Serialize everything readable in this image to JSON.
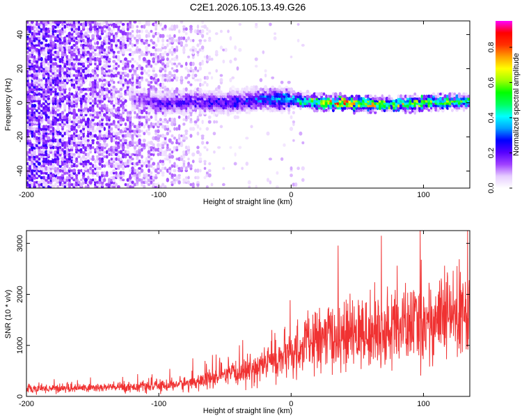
{
  "title": "C2E1.2026.105.13.49.G26",
  "chart_data": [
    {
      "type": "heatmap",
      "name": "spectrogram",
      "xlabel": "Height of straight line (km)",
      "ylabel": "Frequency (Hz)",
      "xlim": [
        -200,
        135
      ],
      "ylim": [
        -50,
        48
      ],
      "xticks": [
        -200,
        -100,
        0,
        100
      ],
      "yticks": [
        -40,
        -20,
        0,
        20,
        40
      ],
      "colorbar": {
        "label": "Normalized spectral amplitude",
        "range": [
          0,
          0.95
        ],
        "ticks": [
          0.0,
          0.2,
          0.4,
          0.6,
          0.8
        ],
        "tick_labels": [
          "0.0",
          "0.2",
          "0.4",
          "0.6",
          "0.8"
        ],
        "colormap": [
          "#ffffff",
          "#e6ccff",
          "#9f40ff",
          "#5500ff",
          "#0000ff",
          "#00a0ff",
          "#00ffff",
          "#00ff60",
          "#00ff00",
          "#a0ff00",
          "#ffff00",
          "#ffa000",
          "#ff3000",
          "#ff0000",
          "#ff00ff"
        ]
      },
      "signal": {
        "description_points": [
          {
            "x": -115,
            "f_center": 2,
            "amplitude": 0.15
          },
          {
            "x": -100,
            "f_center": -1,
            "amplitude": 0.2
          },
          {
            "x": -75,
            "f_center": 1,
            "amplitude": 0.22
          },
          {
            "x": -50,
            "f_center": 0,
            "amplitude": 0.25
          },
          {
            "x": -25,
            "f_center": 2,
            "amplitude": 0.3
          },
          {
            "x": 0,
            "f_center": 2,
            "amplitude": 0.4
          },
          {
            "x": 25,
            "f_center": 0,
            "amplitude": 0.7
          },
          {
            "x": 50,
            "f_center": -0.5,
            "amplitude": 0.75
          },
          {
            "x": 75,
            "f_center": -1,
            "amplitude": 0.6
          },
          {
            "x": 100,
            "f_center": 0,
            "amplitude": 0.65
          },
          {
            "x": 130,
            "f_center": 1,
            "amplitude": 0.55
          }
        ],
        "noise_region_x": [
          -200,
          -60
        ]
      }
    },
    {
      "type": "line",
      "name": "snr",
      "xlabel": "Height of straight line (km)",
      "ylabel": "SNR (10 * v/v)",
      "xlim": [
        -200,
        135
      ],
      "ylim": [
        0,
        3250
      ],
      "xticks": [
        -200,
        -100,
        0,
        100
      ],
      "yticks": [
        0,
        1000,
        2000,
        3000
      ],
      "color": "#f03232",
      "trend": {
        "x": [
          -200,
          -150,
          -100,
          -75,
          -50,
          -30,
          -20,
          -10,
          0,
          10,
          25,
          50,
          75,
          100,
          135
        ],
        "y": [
          150,
          170,
          200,
          270,
          400,
          520,
          650,
          740,
          800,
          1000,
          1150,
          1200,
          1300,
          1450,
          1650
        ]
      }
    }
  ]
}
